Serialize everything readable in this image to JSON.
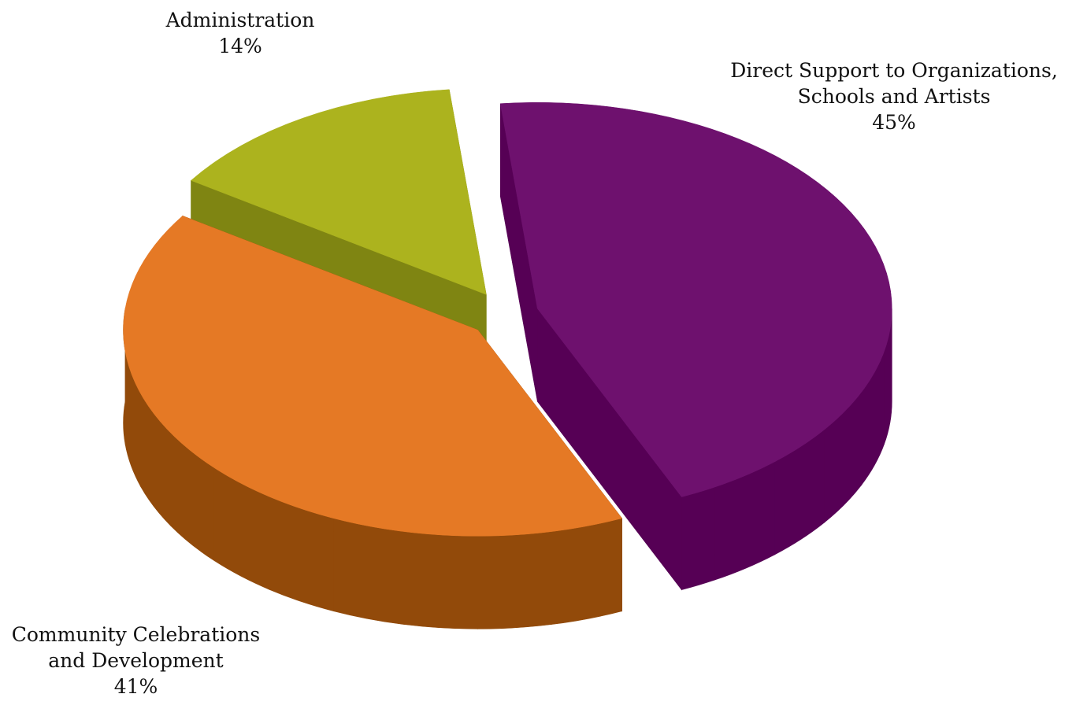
{
  "chart_data": {
    "type": "pie",
    "style": "3d-exploded",
    "title": "",
    "slices": [
      {
        "label_lines": [
          "Direct Support to Organizations,",
          "Schools and Artists"
        ],
        "value": 45,
        "value_label": "45%",
        "top_color": "#6E116E",
        "side_color": "#560055"
      },
      {
        "label_lines": [
          "Community Celebrations",
          "and Development"
        ],
        "value": 41,
        "value_label": "41%",
        "top_color": "#E57925",
        "side_color": "#924A0A"
      },
      {
        "label_lines": [
          "Administration"
        ],
        "value": 14,
        "value_label": "14%",
        "top_color": "#ACB31E",
        "side_color": "#7F8512"
      }
    ]
  }
}
